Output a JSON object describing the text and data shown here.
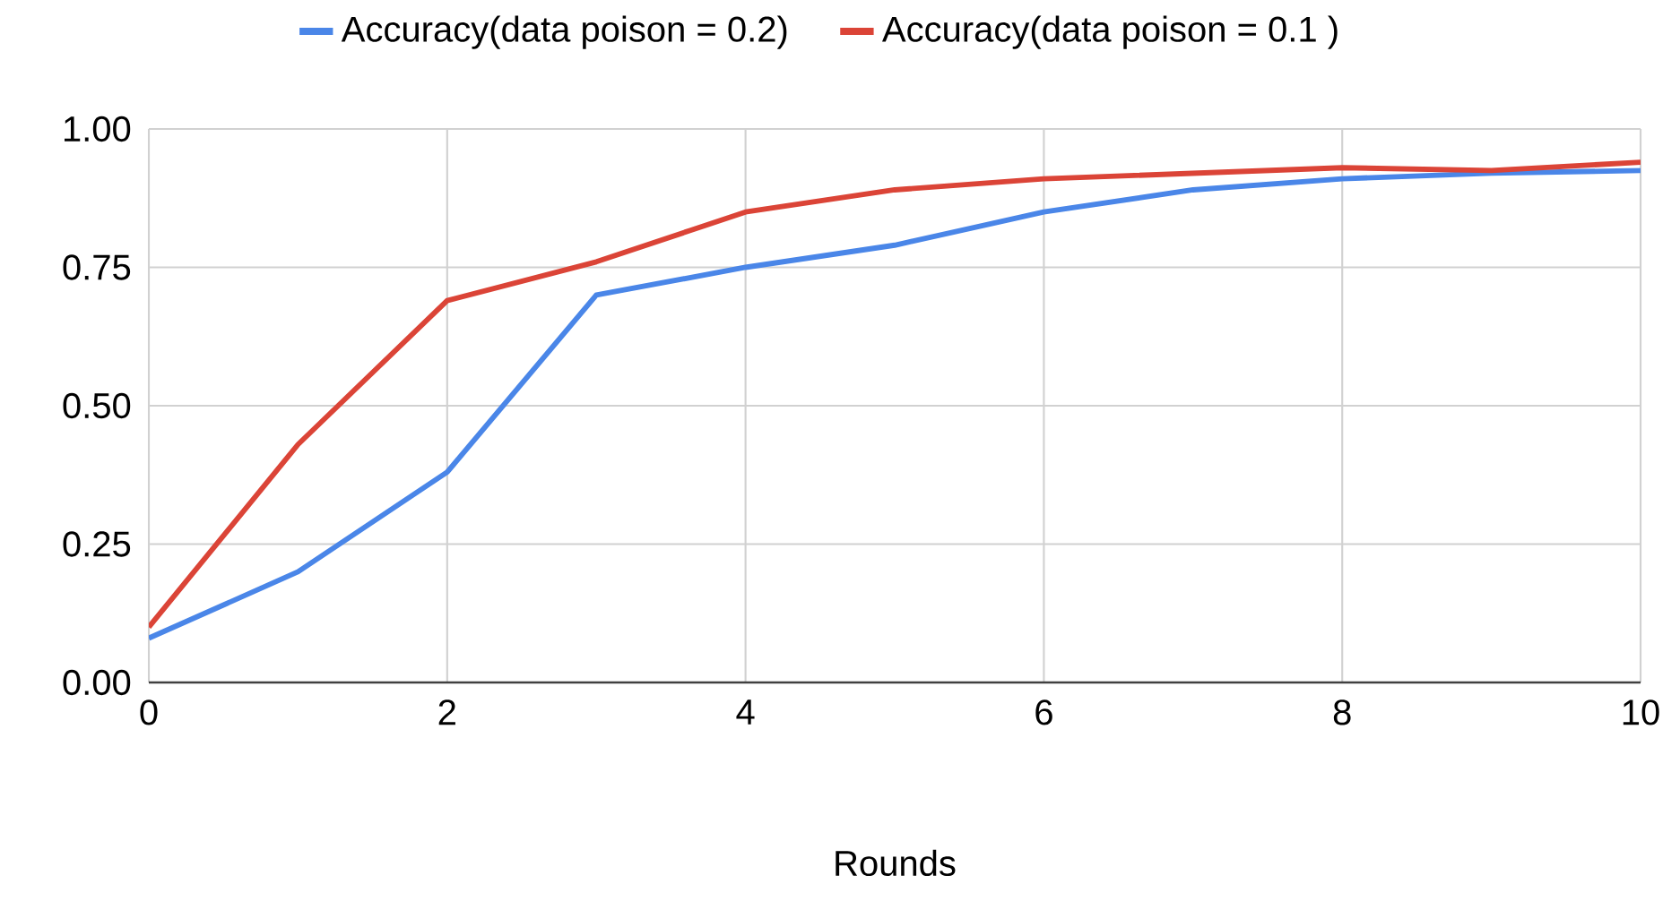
{
  "chart_data": {
    "type": "line",
    "xlabel": "Rounds",
    "x": [
      0,
      1,
      2,
      3,
      4,
      5,
      6,
      7,
      8,
      9,
      10
    ],
    "series": [
      {
        "name": "Accuracy(data poison = 0.2)",
        "color": "#4a86e8",
        "values": [
          0.08,
          0.2,
          0.38,
          0.7,
          0.75,
          0.79,
          0.85,
          0.89,
          0.91,
          0.92,
          0.925
        ]
      },
      {
        "name": "Accuracy(data poison =  0.1 )",
        "color": "#db4437",
        "values": [
          0.1,
          0.43,
          0.69,
          0.76,
          0.85,
          0.89,
          0.91,
          0.92,
          0.93,
          0.925,
          0.94
        ]
      }
    ],
    "xlim": [
      0,
      10
    ],
    "xticks": [
      0,
      2,
      4,
      6,
      8,
      10
    ],
    "ylim": [
      0,
      1
    ],
    "yticks": [
      {
        "value": 0,
        "label": "0.00"
      },
      {
        "value": 0.25,
        "label": "0.25"
      },
      {
        "value": 0.5,
        "label": "0.50"
      },
      {
        "value": 0.75,
        "label": "0.75"
      },
      {
        "value": 1,
        "label": "1.00"
      }
    ],
    "grid": true,
    "legend": "top",
    "marker": "none",
    "line_style": "solid"
  }
}
